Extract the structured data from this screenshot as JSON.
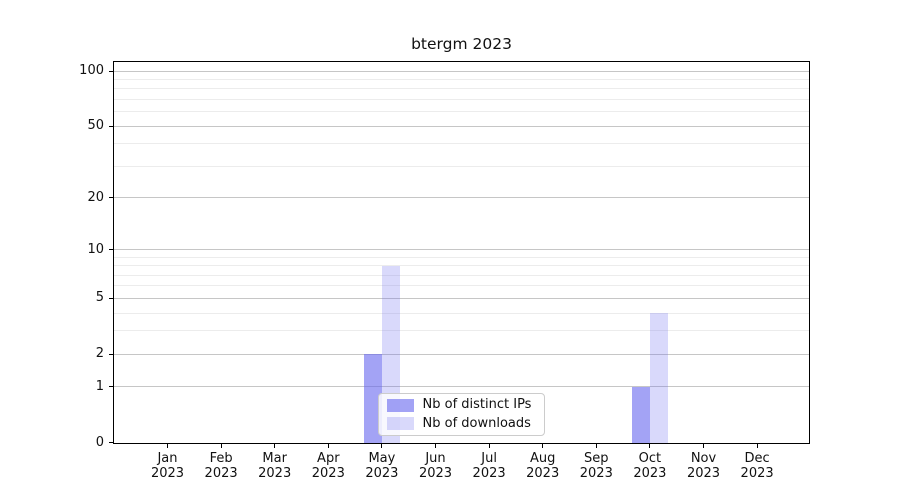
{
  "chart_data": {
    "type": "bar",
    "title": "btergm 2023",
    "categories": [
      "Jan",
      "Feb",
      "Mar",
      "Apr",
      "May",
      "Jun",
      "Jul",
      "Aug",
      "Sep",
      "Oct",
      "Nov",
      "Dec"
    ],
    "x_year_label": "2023",
    "series": [
      {
        "name": "Nb of distinct IPs",
        "color": "rgba(102,102,238,0.6)",
        "values": [
          0,
          0,
          0,
          0,
          2,
          0,
          0,
          0,
          0,
          1,
          0,
          0
        ]
      },
      {
        "name": "Nb of downloads",
        "color": "rgba(102,102,238,0.25)",
        "values": [
          0,
          0,
          0,
          0,
          8,
          0,
          0,
          0,
          0,
          4,
          0,
          0
        ]
      }
    ],
    "y_ticks": [
      0,
      1,
      2,
      5,
      10,
      20,
      50,
      100
    ],
    "y_minor_gridlines": [
      3,
      4,
      6,
      7,
      8,
      9,
      30,
      40,
      60,
      70,
      80,
      90
    ],
    "yscale": "log1p",
    "ylim": [
      0,
      113
    ],
    "xlabel": "",
    "ylabel": "",
    "grid": true,
    "legend_position": "lower-center-left"
  },
  "styles": {
    "grid_major_color": "#c6c6c6",
    "grid_minor_color": "#ececec",
    "axis_color": "#000000",
    "text_color": "#111111"
  }
}
